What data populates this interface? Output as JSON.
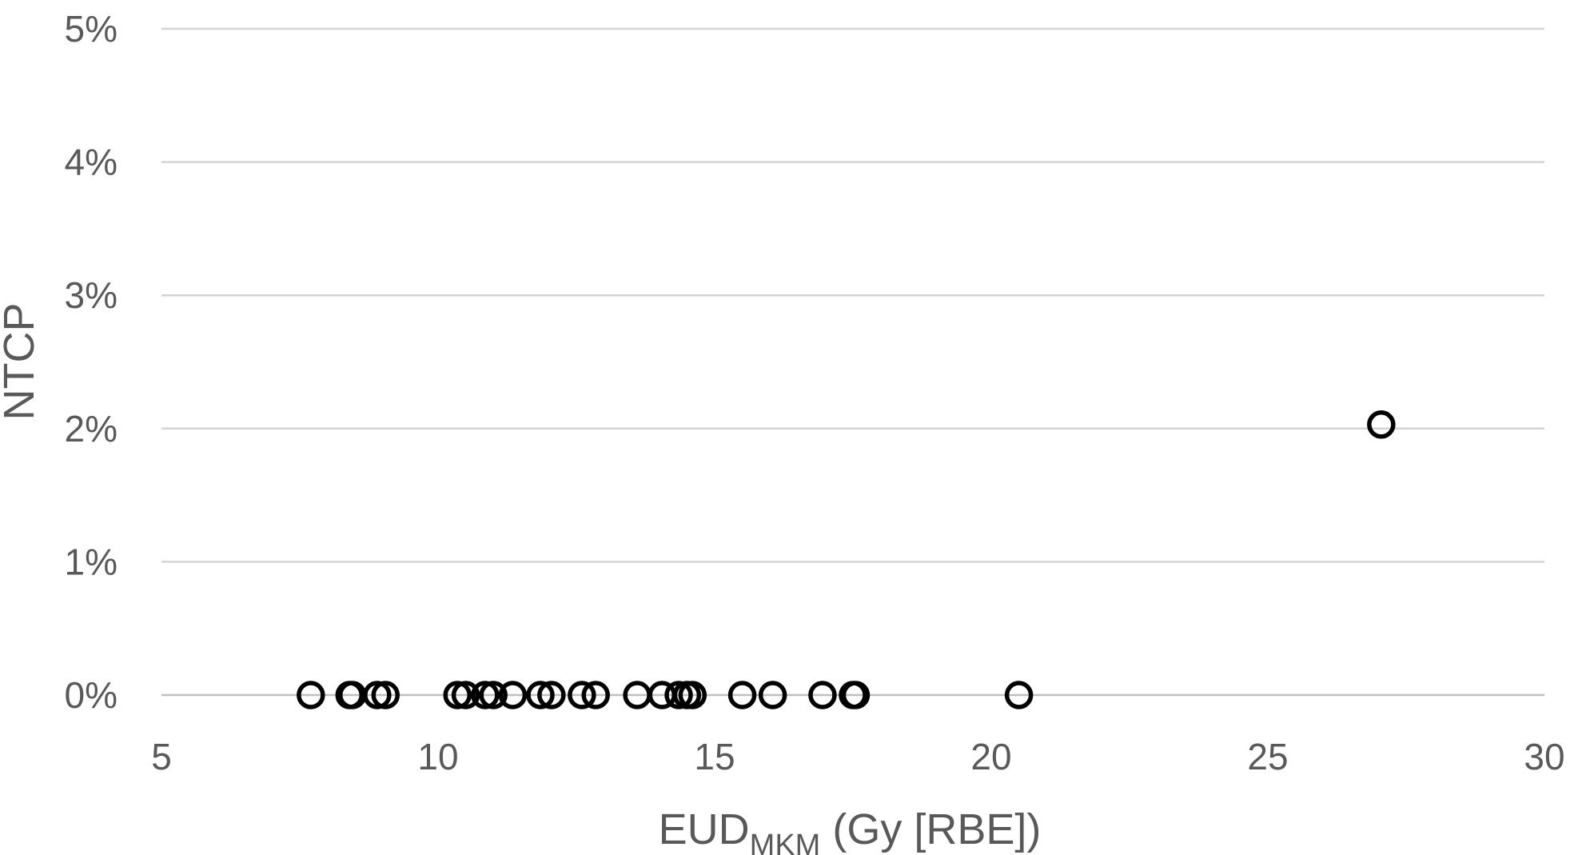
{
  "chart_data": {
    "type": "scatter",
    "title": "",
    "xlabel": {
      "main": "EUD",
      "subscript": "MKM",
      "suffix": " (Gy [RBE])"
    },
    "ylabel": "NTCP",
    "xlim": [
      5,
      30
    ],
    "ylim": [
      0,
      5
    ],
    "x_ticks": [
      5,
      10,
      15,
      20,
      25,
      30
    ],
    "x_tick_labels": [
      "5",
      "10",
      "15",
      "20",
      "25",
      "30"
    ],
    "y_ticks": [
      0,
      1,
      2,
      3,
      4,
      5
    ],
    "y_tick_labels": [
      "0%",
      "1%",
      "2%",
      "3%",
      "4%",
      "5%"
    ],
    "y_unit": "%",
    "grid": "horizontal",
    "legend": "none",
    "marker": "open-circle",
    "marker_color": "#000000",
    "series": [
      {
        "points": [
          {
            "x": 7.7,
            "y": 0
          },
          {
            "x": 8.4,
            "y": 0
          },
          {
            "x": 8.45,
            "y": 0
          },
          {
            "x": 8.9,
            "y": 0
          },
          {
            "x": 9.05,
            "y": 0
          },
          {
            "x": 10.35,
            "y": 0
          },
          {
            "x": 10.5,
            "y": 0
          },
          {
            "x": 10.85,
            "y": 0
          },
          {
            "x": 11.0,
            "y": 0
          },
          {
            "x": 11.35,
            "y": 0
          },
          {
            "x": 11.85,
            "y": 0
          },
          {
            "x": 12.05,
            "y": 0
          },
          {
            "x": 12.6,
            "y": 0
          },
          {
            "x": 12.85,
            "y": 0
          },
          {
            "x": 13.6,
            "y": 0
          },
          {
            "x": 14.05,
            "y": 0
          },
          {
            "x": 14.35,
            "y": 0
          },
          {
            "x": 14.5,
            "y": 0
          },
          {
            "x": 14.6,
            "y": 0
          },
          {
            "x": 15.5,
            "y": 0
          },
          {
            "x": 16.05,
            "y": 0
          },
          {
            "x": 16.95,
            "y": 0
          },
          {
            "x": 17.5,
            "y": 0
          },
          {
            "x": 17.55,
            "y": 0
          },
          {
            "x": 20.5,
            "y": 0
          },
          {
            "x": 27.05,
            "y": 2.03
          }
        ]
      }
    ]
  }
}
